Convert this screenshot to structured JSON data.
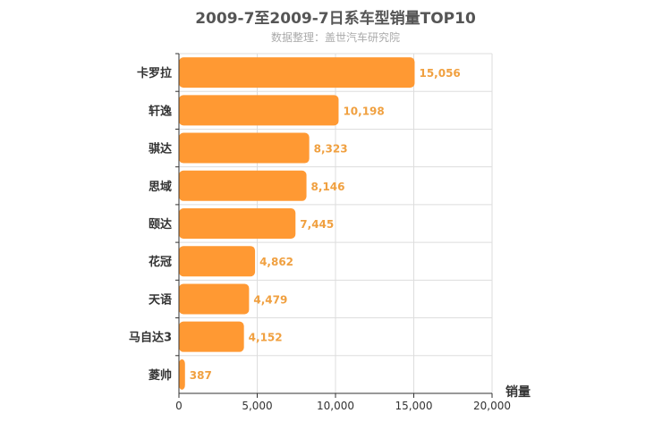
{
  "chart_data": {
    "type": "bar",
    "orientation": "horizontal",
    "title": "2009-7至2009-7日系车型销量TOP10",
    "subtitle": "数据整理：盖世汽车研究院",
    "xlabel": "销量",
    "ylabel": "",
    "categories": [
      "卡罗拉",
      "轩逸",
      "骐达",
      "思域",
      "颐达",
      "花冠",
      "天语",
      "马自达3",
      "菱帅"
    ],
    "values": [
      15056,
      10198,
      8323,
      8146,
      7445,
      4862,
      4479,
      4152,
      387
    ],
    "value_labels": [
      "15,056",
      "10,198",
      "8,323",
      "8,146",
      "7,445",
      "4,862",
      "4,479",
      "4,152",
      "387"
    ],
    "xlim": [
      0,
      20000
    ],
    "xticks": [
      0,
      5000,
      10000,
      15000,
      20000
    ],
    "xtick_labels": [
      "0",
      "5,000",
      "10,000",
      "15,000",
      "20,000"
    ],
    "grid": true,
    "legend": "none"
  },
  "colors": {
    "bar": "#ff9933",
    "value_label": "#f0a040",
    "grid": "#dddddd",
    "axis": "#333333"
  }
}
